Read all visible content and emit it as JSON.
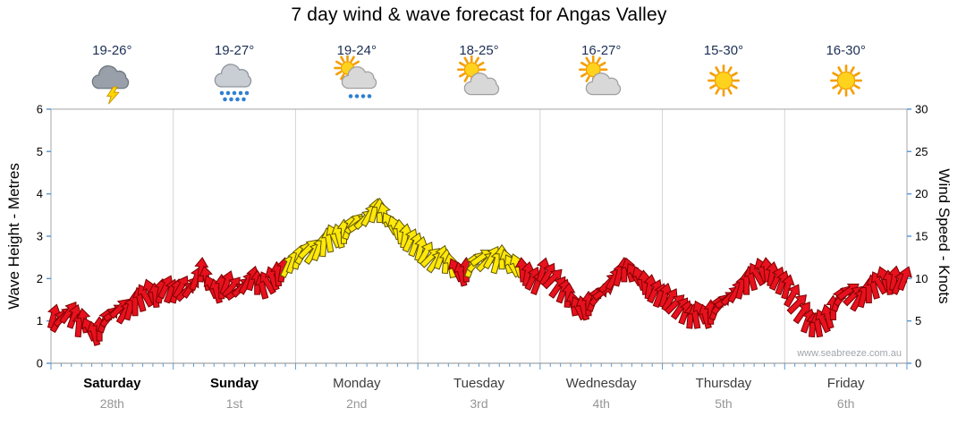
{
  "title": "7 day wind & wave forecast for Angas Valley",
  "watermark": "www.seabreeze.com.au",
  "axes": {
    "left_label": "Wave Height - Metres",
    "right_label": "Wind Speed - Knots",
    "left_ticks": [
      0,
      1,
      2,
      3,
      4,
      5,
      6
    ],
    "right_ticks": [
      0,
      5,
      10,
      15,
      20,
      25,
      30
    ]
  },
  "days": [
    {
      "name": "Saturday",
      "date": "28th",
      "temp": "19-26°",
      "icon": "storm",
      "bold": true
    },
    {
      "name": "Sunday",
      "date": "1st",
      "temp": "19-27°",
      "icon": "rain",
      "bold": true
    },
    {
      "name": "Monday",
      "date": "2nd",
      "temp": "19-24°",
      "icon": "sun-rain",
      "bold": false
    },
    {
      "name": "Tuesday",
      "date": "3rd",
      "temp": "18-25°",
      "icon": "sun-cloud",
      "bold": false
    },
    {
      "name": "Wednesday",
      "date": "4th",
      "temp": "16-27°",
      "icon": "sun-cloud",
      "bold": false
    },
    {
      "name": "Thursday",
      "date": "5th",
      "temp": "15-30°",
      "icon": "sunny",
      "bold": false
    },
    {
      "name": "Friday",
      "date": "6th",
      "temp": "16-30°",
      "icon": "sunny",
      "bold": false
    }
  ],
  "chart_data": {
    "type": "wind-arrows",
    "x_unit": "hours",
    "hours_per_point": 1,
    "ylim_left_m": [
      0,
      6
    ],
    "ylim_right_knots": [
      0,
      30
    ],
    "wave_height_m": 0,
    "grid": "vertical-day-boundaries",
    "wind_knots_by_day": [
      [
        5.5,
        5,
        5.5,
        6,
        5.5,
        4.5,
        5,
        4,
        3.5,
        4,
        5,
        5.5,
        6,
        6.5,
        6,
        6.5,
        7,
        7.5,
        8,
        8.5,
        8,
        8.5,
        9,
        8.5
      ],
      [
        8.5,
        9,
        8.5,
        9,
        10,
        11,
        10,
        9,
        8.5,
        9,
        9.5,
        9,
        8.5,
        9,
        9.5,
        10,
        9.5,
        9,
        9.5,
        10,
        10.5,
        11,
        11.5,
        12
      ],
      [
        12.5,
        13,
        13.5,
        13,
        13.5,
        14,
        14.5,
        15,
        15,
        15.5,
        16,
        16.5,
        16.5,
        17,
        17.5,
        18,
        18,
        17.5,
        16.5,
        16,
        15.5,
        15,
        14.5,
        14
      ],
      [
        13.5,
        13,
        12.5,
        12,
        12.5,
        12,
        11.5,
        11,
        10.5,
        11,
        11.5,
        12,
        12.5,
        12,
        12.5,
        12,
        12.5,
        12,
        11.5,
        11.5,
        11,
        10.5,
        10,
        9.5
      ],
      [
        11,
        10.5,
        10,
        9,
        8.5,
        8,
        7,
        6.5,
        6.5,
        7,
        7.5,
        8,
        8.5,
        9.5,
        10,
        10.5,
        11,
        11,
        10.5,
        10,
        9.5,
        9,
        8.5,
        8
      ],
      [
        8,
        7.5,
        7,
        6.5,
        6,
        5.5,
        5.5,
        6,
        5.5,
        6,
        6.5,
        7,
        7.5,
        8,
        8.5,
        9,
        9.5,
        10,
        10.5,
        11,
        11,
        10.5,
        10,
        9.5
      ],
      [
        9,
        8,
        7,
        6,
        5,
        4.5,
        4.5,
        5,
        5.5,
        6.5,
        7.5,
        8,
        8.5,
        8,
        7.5,
        8,
        8.5,
        9,
        9.5,
        10,
        9.5,
        10,
        9.5,
        10
      ]
    ],
    "direction_pattern_deg": [
      15,
      30,
      45,
      35,
      20,
      5,
      -10,
      -25,
      -15,
      0,
      20,
      40,
      55,
      45,
      30,
      15,
      0,
      -15,
      -30,
      -20,
      -5,
      10,
      25,
      20
    ],
    "colors": {
      "threshold_knots": 11.5,
      "light_fill": "#e8111e",
      "light_stroke": "#7a0000",
      "moderate_fill": "#ffe80a",
      "moderate_stroke": "#5f5400",
      "tick_color": "#5b9bd5",
      "grid_color": "#d4d4d4",
      "frame_color": "#a6a6a6"
    }
  }
}
